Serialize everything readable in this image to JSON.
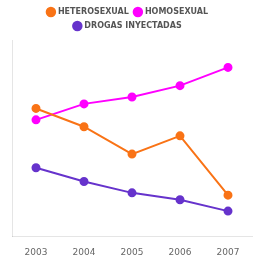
{
  "chart_data": {
    "type": "line",
    "x": [
      2003,
      2004,
      2005,
      2006,
      2007
    ],
    "xlim": [
      2002.5,
      2007.5
    ],
    "xticks": [
      2003,
      2004,
      2005,
      2006,
      2007
    ],
    "ylim": [
      0.22,
      1.08
    ],
    "yticks": [],
    "grid": false,
    "legend": "top",
    "tick_labels": "x",
    "marker": "circle",
    "series": [
      {
        "name": "HETEROSEXUAL",
        "color": "#f97316",
        "values": [
          0.78,
          0.7,
          0.58,
          0.66,
          0.4
        ]
      },
      {
        "name": "HOMOSEXUAL",
        "color": "#ff00ff",
        "values": [
          0.73,
          0.8,
          0.83,
          0.88,
          0.96
        ]
      },
      {
        "name": "DROGAS INYECTADAS",
        "color": "#6633cc",
        "values": [
          0.52,
          0.46,
          0.41,
          0.38,
          0.33
        ]
      }
    ]
  }
}
